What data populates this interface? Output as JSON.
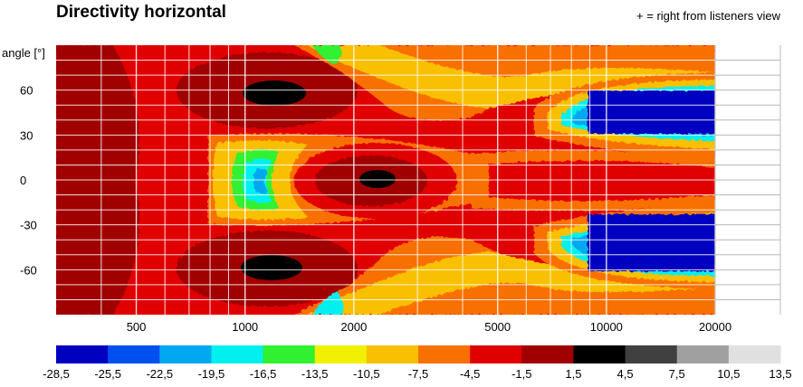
{
  "title": "Directivity horizontal",
  "note": "+ = right from listeners view",
  "chart_data": {
    "type": "heatmap",
    "title": "Directivity horizontal",
    "ylabel": "angle [°]",
    "xlabel": "",
    "x_scale": "log",
    "xlim": [
      300,
      20000
    ],
    "ylim": [
      -90,
      90
    ],
    "x_ticks": [
      "500",
      "1000",
      "2000",
      "5000",
      "10000",
      "20000"
    ],
    "x_tick_values": [
      500,
      1000,
      2000,
      5000,
      10000,
      20000
    ],
    "y_ticks": [
      "60",
      "30",
      "0",
      "-30",
      "-60"
    ],
    "y_tick_values": [
      60,
      30,
      0,
      -30,
      -60
    ],
    "colorbar": {
      "ticks": [
        "-28,5",
        "-25,5",
        "-22,5",
        "-19,5",
        "-16,5",
        "-13,5",
        "-10,5",
        "-7,5",
        "-4,5",
        "-1,5",
        "1,5",
        "4,5",
        "7,5",
        "10,5",
        "13,5"
      ],
      "colors": [
        "#0000c0",
        "#0050f0",
        "#00a8f0",
        "#00f0f0",
        "#30f030",
        "#f0f000",
        "#f8c000",
        "#f87000",
        "#e00000",
        "#a00000",
        "#000000",
        "#404040",
        "#a0a0a0",
        "#e0e0e0"
      ]
    },
    "regions": [
      {
        "level": "-1,5",
        "desc": "outer band 300-600 Hz",
        "freq": [
          300,
          600
        ],
        "angle": [
          -90,
          90
        ]
      },
      {
        "level": "-1,5",
        "desc": "+60° lobe",
        "freq": [
          800,
          2000
        ],
        "angle": [
          40,
          85
        ]
      },
      {
        "level": "1,5",
        "desc": "+60° core",
        "freq": [
          1200,
          1600
        ],
        "angle": [
          57,
          65
        ]
      },
      {
        "level": "-1,5",
        "desc": "-60° lobe",
        "freq": [
          800,
          2000
        ],
        "angle": [
          -85,
          -40
        ]
      },
      {
        "level": "1,5",
        "desc": "-60° core",
        "freq": [
          1200,
          1600
        ],
        "angle": [
          -65,
          -57
        ]
      },
      {
        "level": "-1,5",
        "desc": "on-axis lobe",
        "freq": [
          1800,
          3500
        ],
        "angle": [
          -20,
          20
        ]
      },
      {
        "level": "1,5",
        "desc": "on-axis core",
        "freq": [
          2400,
          2900
        ],
        "angle": [
          -3,
          3
        ]
      },
      {
        "level": "-19,5",
        "desc": "notch",
        "freq": [
          1150,
          1350
        ],
        "angle": [
          -5,
          15
        ]
      },
      {
        "level": "-28,5",
        "desc": "+45° high-frequency null",
        "freq": [
          9500,
          20000
        ],
        "angle": [
          32,
          63
        ]
      },
      {
        "level": "-28,5",
        "desc": "-45° high-frequency null",
        "freq": [
          9500,
          20000
        ],
        "angle": [
          -63,
          -32
        ]
      }
    ]
  }
}
